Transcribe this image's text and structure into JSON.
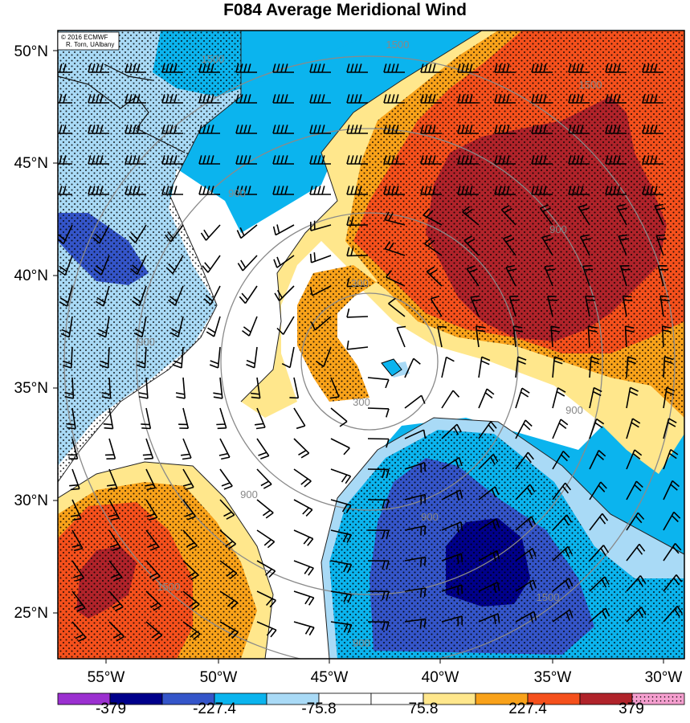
{
  "title": "F084 Average Meridional Wind",
  "credit": {
    "line1": "© 2016 ECMWF",
    "line2": "R. Torn, UAlbany"
  },
  "axes": {
    "lat_labels": [
      "50°N",
      "45°N",
      "40°N",
      "35°N",
      "30°N",
      "25°N"
    ],
    "lon_labels": [
      "55°W",
      "50°W",
      "45°W",
      "40°W",
      "35°W",
      "30°W"
    ]
  },
  "contour_labels": [
    "1500",
    "1500",
    "1500",
    "900",
    "900",
    "900",
    "900",
    "900",
    "300",
    "300",
    "900",
    "1500",
    "1500",
    "900"
  ],
  "colorbar": {
    "colors": [
      "#9b30d0",
      "#00008b",
      "#3455c9",
      "#0bb4ee",
      "#a9daf6",
      "#ffffff",
      "#ffffff",
      "#ffe78c",
      "#f9a21a",
      "#f5501c",
      "#b0232a",
      "#f59fcf"
    ],
    "labels": [
      "-379",
      "-227.4",
      "-75.8",
      "75.8",
      "227.4",
      "379"
    ]
  },
  "colors": {
    "deep_red": "#b0232a",
    "red_orange": "#f5501c",
    "orange": "#f9a21a",
    "yellow": "#ffe78c",
    "white": "#ffffff",
    "light_blue": "#a9daf6",
    "cyan": "#0bb4ee",
    "mid_blue": "#3455c9",
    "navy": "#00008b"
  }
}
